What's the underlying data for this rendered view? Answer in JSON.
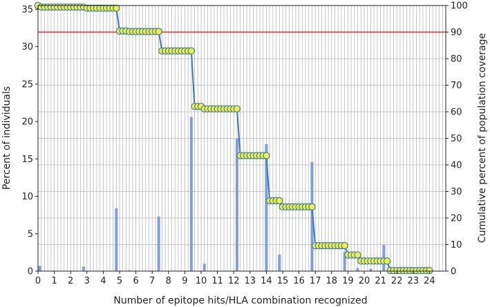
{
  "chart_data": {
    "type": "bar",
    "xlabel": "Number of epitope hits/HLA combination recognized",
    "ylabel": "Percent of individuals",
    "y2label": "Cumulative percent of population coverage",
    "xlim": [
      0,
      25
    ],
    "ylim": [
      0,
      35.5
    ],
    "y2lim": [
      0,
      100
    ],
    "grid": true,
    "x_step": 0.2,
    "x_ticks": [
      "0",
      "1",
      "2",
      "3",
      "4",
      "5",
      "6",
      "7",
      "8",
      "9",
      "10",
      "11",
      "12",
      "13",
      "14",
      "15",
      "16",
      "17",
      "18",
      "19",
      "20",
      "21",
      "22",
      "23",
      "24"
    ],
    "y_ticks": [
      "0",
      "5",
      "10",
      "15",
      "20",
      "25",
      "30",
      "35"
    ],
    "y2_ticks": [
      "0",
      "10",
      "20",
      "30",
      "40",
      "50",
      "60",
      "70",
      "80",
      "90",
      "100"
    ],
    "threshold_line": {
      "value": 90,
      "axis": "y2"
    },
    "bars": {
      "x": [
        0.1,
        2.8,
        4.8,
        5.6,
        7.4,
        9.4,
        10.2,
        12.2,
        14.0,
        14.8,
        16.8,
        18.8,
        19.6,
        20.4,
        21.2,
        22.0
      ],
      "values": [
        0.7,
        0.6,
        8.4,
        0.1,
        7.3,
        20.6,
        1.0,
        17.7,
        17.0,
        2.2,
        14.6,
        2.6,
        0.4,
        0.3,
        3.5,
        0.2
      ]
    },
    "coverage": {
      "x": [
        0.0,
        0.2,
        0.4,
        0.6,
        0.8,
        1.0,
        1.2,
        1.4,
        1.6,
        1.8,
        2.0,
        2.2,
        2.4,
        2.6,
        2.8,
        3.0,
        3.2,
        3.4,
        3.6,
        3.8,
        4.0,
        4.2,
        4.4,
        4.6,
        4.8,
        5.0,
        5.2,
        5.4,
        5.6,
        5.8,
        6.0,
        6.2,
        6.4,
        6.6,
        6.8,
        7.0,
        7.2,
        7.4,
        7.6,
        7.8,
        8.0,
        8.2,
        8.4,
        8.6,
        8.8,
        9.0,
        9.2,
        9.4,
        9.6,
        9.8,
        10.0,
        10.2,
        10.4,
        10.6,
        10.8,
        11.0,
        11.2,
        11.4,
        11.6,
        11.8,
        12.0,
        12.2,
        12.4,
        12.6,
        12.8,
        13.0,
        13.2,
        13.4,
        13.6,
        13.8,
        14.0,
        14.2,
        14.4,
        14.6,
        14.8,
        15.0,
        15.2,
        15.4,
        15.6,
        15.8,
        16.0,
        16.2,
        16.4,
        16.6,
        16.8,
        17.0,
        17.2,
        17.4,
        17.6,
        17.8,
        18.0,
        18.2,
        18.4,
        18.6,
        18.8,
        19.0,
        19.2,
        19.4,
        19.6,
        19.8,
        20.0,
        20.2,
        20.4,
        20.6,
        20.8,
        21.0,
        21.2,
        21.4,
        21.6,
        21.8,
        22.0,
        22.2,
        22.4,
        22.6,
        22.8,
        23.0,
        23.2,
        23.4,
        23.6,
        23.8,
        24.0
      ],
      "values": [
        100,
        99.4,
        99.4,
        99.4,
        99.4,
        99.4,
        99.4,
        99.4,
        99.4,
        99.4,
        99.4,
        99.4,
        99.4,
        99.4,
        99.4,
        99.0,
        99.0,
        99.0,
        99.0,
        99.0,
        99.0,
        99.0,
        99.0,
        99.0,
        99.0,
        90.4,
        90.4,
        90.4,
        90.2,
        90.2,
        90.2,
        90.2,
        90.2,
        90.2,
        90.2,
        90.2,
        90.2,
        90.2,
        82.9,
        82.9,
        82.9,
        82.9,
        82.9,
        82.9,
        82.9,
        82.9,
        82.9,
        82.9,
        62.0,
        62.0,
        62.0,
        61.1,
        61.1,
        61.1,
        61.1,
        61.1,
        61.1,
        61.1,
        61.1,
        61.1,
        61.1,
        61.1,
        43.5,
        43.5,
        43.5,
        43.5,
        43.5,
        43.5,
        43.5,
        43.5,
        43.5,
        26.5,
        26.5,
        26.5,
        26.5,
        24.2,
        24.2,
        24.2,
        24.2,
        24.2,
        24.2,
        24.2,
        24.2,
        24.2,
        24.2,
        9.6,
        9.6,
        9.6,
        9.6,
        9.6,
        9.6,
        9.6,
        9.6,
        9.6,
        9.6,
        6.1,
        6.1,
        6.1,
        6.1,
        3.8,
        3.8,
        3.8,
        3.8,
        3.8,
        3.8,
        3.8,
        3.8,
        3.8,
        0.2,
        0.2,
        0.2,
        0.2,
        0.2,
        0.2,
        0.2,
        0.2,
        0.2,
        0.2,
        0.2,
        0.2,
        0.2
      ]
    },
    "colors": {
      "bar": "#7f9ce8",
      "line": "#3a7ab8",
      "marker_fill": "#f2f23a",
      "marker_edge": "#3a7ab8",
      "threshold": "#e8262b",
      "grid": "#b8b8b8",
      "axis": "#222222"
    }
  }
}
